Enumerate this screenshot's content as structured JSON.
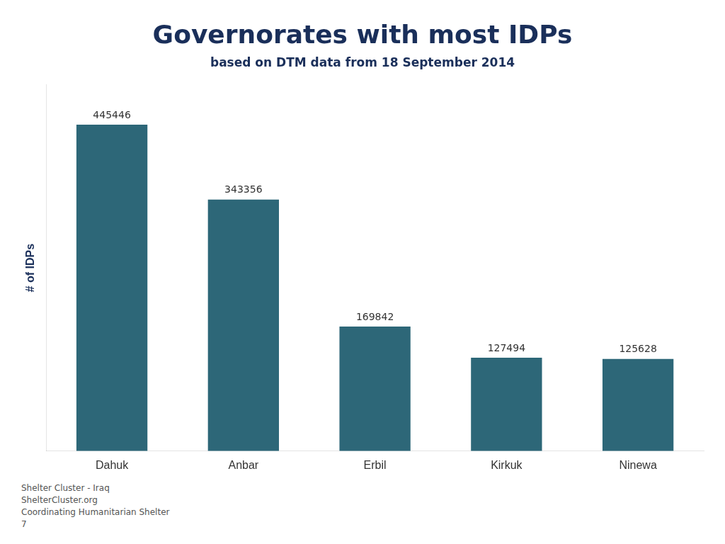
{
  "chart_data": {
    "type": "bar",
    "title": "Governorates with most IDPs",
    "subtitle": "based on DTM data from 18 September 2014",
    "ylabel": "# of IDPs",
    "categories": [
      "Dahuk",
      "Anbar",
      "Erbil",
      "Kirkuk",
      "Ninewa"
    ],
    "values": [
      445446,
      343356,
      169842,
      127494,
      125628
    ],
    "color": "#2d6778",
    "ylim": [
      0,
      500000
    ],
    "grid": false,
    "data_labels": true,
    "tick_labels": "x",
    "annotations": [
      "Shelter Cluster - Iraq",
      "ShelterCluster.org",
      "Coordinating Humanitarian Shelter",
      "7"
    ]
  }
}
